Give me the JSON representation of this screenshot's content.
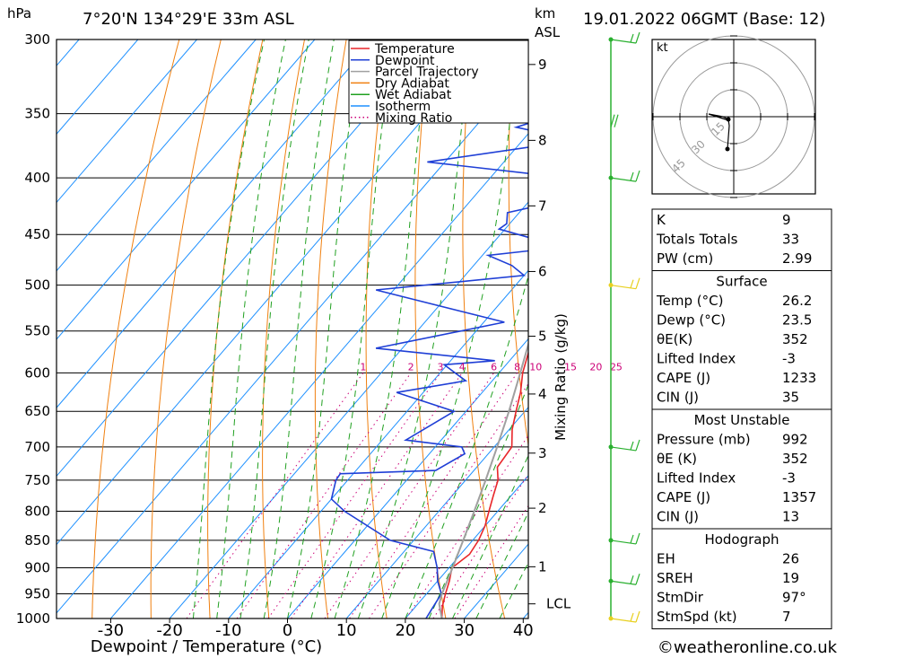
{
  "header": {
    "location": "7°20'N  134°29'E  33m  ASL",
    "datetime": "19.01.2022  06GMT  (Base: 12)",
    "pressure_unit": "hPa",
    "km_unit": "km",
    "asl_unit": "ASL",
    "kt_label": "kt",
    "footer": "©weatheronline.co.uk"
  },
  "colors": {
    "temperature": "#e8262a",
    "dewpoint": "#1f3fd6",
    "parcel": "#a0a0a0",
    "dry_adiabat": "#f08010",
    "wet_adiabat": "#20a020",
    "isotherm": "#1e90ff",
    "mixing_ratio": "#cc0077",
    "wind_barb": "#2ab030"
  },
  "chart_data": {
    "type": "line",
    "title": "7°20'N  134°29'E  33m  ASL",
    "xlabel": "Dewpoint / Temperature (°C)",
    "ylabel": "hPa",
    "right_label": "Mixing Ratio (g/kg)",
    "xlim": [
      -40,
      40
    ],
    "ylim": [
      1000,
      300
    ],
    "y_scale": "log",
    "skew": "skew-T",
    "x_ticks": [
      -30,
      -20,
      -10,
      0,
      10,
      20,
      30,
      40
    ],
    "pressure_levels": [
      300,
      350,
      400,
      450,
      500,
      550,
      600,
      650,
      700,
      750,
      800,
      850,
      900,
      950,
      1000
    ],
    "km_ticks": [
      {
        "km": "1",
        "p": 898
      },
      {
        "km": "2",
        "p": 795
      },
      {
        "km": "3",
        "p": 709
      },
      {
        "km": "4",
        "p": 627
      },
      {
        "km": "5",
        "p": 556
      },
      {
        "km": "6",
        "p": 486
      },
      {
        "km": "7",
        "p": 424
      },
      {
        "km": "8",
        "p": 370
      },
      {
        "km": "9",
        "p": 316
      }
    ],
    "lcl_label": "LCL",
    "lcl_pressure": 970,
    "mixing_ratio_labels": [
      "1",
      "2",
      "3",
      "4",
      "6",
      "8",
      "10",
      "15",
      "20",
      "25"
    ],
    "legend": [
      "Temperature",
      "Dewpoint",
      "Parcel Trajectory",
      "Dry Adiabat",
      "Wet Adiabat",
      "Isotherm",
      "Mixing Ratio"
    ],
    "grid": true,
    "series": [
      {
        "name": "Temperature",
        "points": [
          [
            1000,
            26.2
          ],
          [
            975,
            24.5
          ],
          [
            950,
            23.2
          ],
          [
            925,
            22
          ],
          [
            900,
            20.5
          ],
          [
            875,
            21.5
          ],
          [
            850,
            21
          ],
          [
            825,
            20
          ],
          [
            800,
            18.5
          ],
          [
            775,
            17
          ],
          [
            750,
            15.5
          ],
          [
            730,
            13.5
          ],
          [
            700,
            13.0
          ],
          [
            675,
            10.5
          ],
          [
            650,
            8.5
          ],
          [
            625,
            6.5
          ],
          [
            600,
            4.0
          ],
          [
            575,
            2.0
          ],
          [
            550,
            0.2
          ],
          [
            525,
            -1.5
          ],
          [
            500,
            -3.8
          ],
          [
            475,
            -6.5
          ],
          [
            460,
            -7.5
          ],
          [
            450,
            -8.5
          ],
          [
            430,
            -11
          ],
          [
            400,
            -15.5
          ],
          [
            380,
            -19
          ],
          [
            365,
            -21.5
          ]
        ]
      },
      {
        "name": "Dewpoint",
        "points": [
          [
            1000,
            23.5
          ],
          [
            975,
            23.0
          ],
          [
            950,
            22.5
          ],
          [
            925,
            20.0
          ],
          [
            900,
            18.0
          ],
          [
            870,
            15.0
          ],
          [
            850,
            6.0
          ],
          [
            800,
            -6.0
          ],
          [
            780,
            -10.0
          ],
          [
            750,
            -12.0
          ],
          [
            740,
            -12.2
          ],
          [
            735,
            3.5
          ],
          [
            710,
            6.0
          ],
          [
            700,
            4.5
          ],
          [
            690,
            -6.0
          ],
          [
            650,
            -2.0
          ],
          [
            625,
            -14.5
          ],
          [
            610,
            -4.5
          ],
          [
            590,
            -10.5
          ],
          [
            585,
            -2.5
          ],
          [
            570,
            -24.5
          ],
          [
            540,
            -6.5
          ],
          [
            505,
            -33.0
          ],
          [
            490,
            -10.0
          ],
          [
            480,
            -13.5
          ],
          [
            470,
            -19.0
          ],
          [
            465,
            -12.0
          ],
          [
            455,
            -13.0
          ],
          [
            445,
            -21.0
          ],
          [
            440,
            -20.5
          ],
          [
            430,
            -22.0
          ],
          [
            420,
            -15.0
          ],
          [
            410,
            -17.5
          ],
          [
            400,
            -17.0
          ],
          [
            387,
            -43.0
          ],
          [
            370,
            -21.0
          ],
          [
            360,
            -33.0
          ],
          [
            340,
            -22.0
          ],
          [
            310,
            -26.0
          ],
          [
            300,
            -27.0
          ]
        ]
      },
      {
        "name": "Parcel Trajectory",
        "points": [
          [
            1000,
            26.2
          ],
          [
            970,
            23.6
          ],
          [
            950,
            22.6
          ],
          [
            900,
            20.6
          ],
          [
            850,
            18.4
          ],
          [
            800,
            16.0
          ],
          [
            750,
            13.4
          ],
          [
            700,
            10.5
          ],
          [
            650,
            7.3
          ],
          [
            600,
            3.6
          ],
          [
            550,
            -0.5
          ],
          [
            500,
            -5.5
          ],
          [
            450,
            -11.3
          ],
          [
            400,
            -18.0
          ],
          [
            365,
            -23.0
          ]
        ]
      }
    ]
  },
  "hodograph": {
    "unit": "kt",
    "rings": [
      "15",
      "30",
      "45"
    ]
  },
  "indices_table": [
    {
      "label": "K",
      "value": "9"
    },
    {
      "label": "Totals Totals",
      "value": "33"
    },
    {
      "label": "PW (cm)",
      "value": "2.99"
    }
  ],
  "surface_table": {
    "title": "Surface",
    "rows": [
      {
        "label": "Temp (°C)",
        "value": "26.2"
      },
      {
        "label": "Dewp (°C)",
        "value": "23.5"
      },
      {
        "label": "θE(K)",
        "value": "352"
      },
      {
        "label": "Lifted Index",
        "value": "-3"
      },
      {
        "label": "CAPE (J)",
        "value": "1233"
      },
      {
        "label": "CIN (J)",
        "value": "35"
      }
    ]
  },
  "most_unstable_table": {
    "title": "Most Unstable",
    "rows": [
      {
        "label": "Pressure (mb)",
        "value": "992"
      },
      {
        "label": "θE (K)",
        "value": "352"
      },
      {
        "label": "Lifted Index",
        "value": "-3"
      },
      {
        "label": "CAPE (J)",
        "value": "1357"
      },
      {
        "label": "CIN (J)",
        "value": "13"
      }
    ]
  },
  "hodograph_table": {
    "title": "Hodograph",
    "rows": [
      {
        "label": "EH",
        "value": "26"
      },
      {
        "label": "SREH",
        "value": "19"
      },
      {
        "label": "StmDir",
        "value": "97°"
      },
      {
        "label": "StmSpd (kt)",
        "value": "7"
      }
    ]
  }
}
